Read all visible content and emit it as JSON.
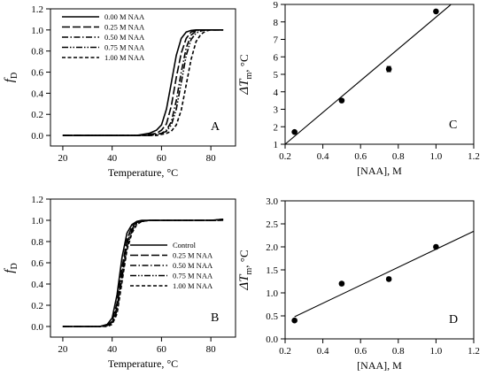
{
  "chart_data": [
    {
      "panel_label": "A",
      "type": "line",
      "xlabel": "Temperature, °C",
      "ylabel_main": "f",
      "ylabel_sub": "D",
      "xlim": [
        15,
        90
      ],
      "ylim": [
        -0.1,
        1.2
      ],
      "xticks": [
        20,
        40,
        60,
        80
      ],
      "yticks": [
        0.0,
        0.2,
        0.4,
        0.6,
        0.8,
        1.0,
        1.2
      ],
      "ytick_decimals": 1,
      "legend_placement": "top-left",
      "x": [
        20,
        30,
        40,
        50,
        55,
        58,
        60,
        62,
        64,
        66,
        68,
        70,
        72,
        74,
        76,
        78,
        80,
        85
      ],
      "series": [
        {
          "name": "0.00 M NAA",
          "dash": "solid",
          "values": [
            0.0,
            0.0,
            0.0,
            0.0,
            0.02,
            0.05,
            0.1,
            0.25,
            0.5,
            0.76,
            0.92,
            0.98,
            0.995,
            1.0,
            1.0,
            1.0,
            1.0,
            1.0
          ]
        },
        {
          "name": "0.25 M NAA",
          "dash": "long",
          "values": [
            0.0,
            0.0,
            0.0,
            0.0,
            0.01,
            0.02,
            0.05,
            0.11,
            0.28,
            0.55,
            0.78,
            0.92,
            0.98,
            0.995,
            1.0,
            1.0,
            1.0,
            1.0
          ]
        },
        {
          "name": "0.50 M NAA",
          "dash": "dashdot",
          "values": [
            0.0,
            0.0,
            0.0,
            0.0,
            0.0,
            0.01,
            0.02,
            0.05,
            0.13,
            0.33,
            0.6,
            0.83,
            0.95,
            0.99,
            1.0,
            1.0,
            1.0,
            1.0
          ]
        },
        {
          "name": "0.75 M NAA",
          "dash": "dashdotdot",
          "values": [
            0.0,
            0.0,
            0.0,
            0.0,
            0.0,
            0.01,
            0.02,
            0.04,
            0.1,
            0.25,
            0.5,
            0.76,
            0.91,
            0.97,
            0.99,
            1.0,
            1.0,
            1.0
          ]
        },
        {
          "name": "1.00 M NAA",
          "dash": "short",
          "values": [
            0.0,
            0.0,
            0.0,
            0.0,
            0.0,
            0.0,
            0.01,
            0.02,
            0.04,
            0.1,
            0.24,
            0.48,
            0.72,
            0.89,
            0.96,
            0.99,
            1.0,
            1.0
          ]
        }
      ]
    },
    {
      "panel_label": "C",
      "type": "scatter",
      "xlabel": "[NAA], M",
      "ylabel_main": "ΔT",
      "ylabel_sub": "m",
      "ylabel_unit": ", °C",
      "xlim": [
        0.2,
        1.2
      ],
      "ylim": [
        1,
        9
      ],
      "xticks": [
        0.2,
        0.4,
        0.6,
        0.8,
        1.0,
        1.2
      ],
      "yticks": [
        1,
        2,
        3,
        4,
        5,
        6,
        7,
        8,
        9
      ],
      "ytick_decimals": 0,
      "points": [
        {
          "x": 0.25,
          "y": 1.7,
          "err": 0.05
        },
        {
          "x": 0.5,
          "y": 3.5,
          "err": 0.08
        },
        {
          "x": 0.75,
          "y": 5.3,
          "err": 0.15
        },
        {
          "x": 1.0,
          "y": 8.6,
          "err": 0.08
        }
      ],
      "fit": {
        "x": [
          0.2,
          1.08
        ],
        "y": [
          1.0,
          9.0
        ]
      }
    },
    {
      "panel_label": "B",
      "type": "line",
      "xlabel": "Temperature, °C",
      "ylabel_main": "f",
      "ylabel_sub": "D",
      "xlim": [
        15,
        90
      ],
      "ylim": [
        -0.1,
        1.2
      ],
      "xticks": [
        20,
        40,
        60,
        80
      ],
      "yticks": [
        0.0,
        0.2,
        0.4,
        0.6,
        0.8,
        1.0,
        1.2
      ],
      "ytick_decimals": 1,
      "legend_placement": "center-right",
      "x": [
        20,
        30,
        35,
        38,
        40,
        42,
        44,
        46,
        48,
        50,
        52,
        55,
        60,
        70,
        80,
        85
      ],
      "series": [
        {
          "name": "Control",
          "dash": "solid",
          "values": [
            0.0,
            0.0,
            0.0,
            0.02,
            0.08,
            0.3,
            0.65,
            0.88,
            0.96,
            0.99,
            1.0,
            1.0,
            1.0,
            1.0,
            1.0,
            1.01
          ]
        },
        {
          "name": "0.25 M NAA",
          "dash": "long",
          "values": [
            0.0,
            0.0,
            0.0,
            0.01,
            0.05,
            0.22,
            0.55,
            0.82,
            0.94,
            0.98,
            0.99,
            1.0,
            1.0,
            1.0,
            1.0,
            1.01
          ]
        },
        {
          "name": "0.50 M NAA",
          "dash": "dashdot",
          "values": [
            0.0,
            0.0,
            0.0,
            0.01,
            0.04,
            0.18,
            0.5,
            0.78,
            0.92,
            0.97,
            0.99,
            1.0,
            1.0,
            1.0,
            1.0,
            1.0
          ]
        },
        {
          "name": "0.75 M NAA",
          "dash": "dashdotdot",
          "values": [
            0.0,
            0.0,
            0.0,
            0.01,
            0.03,
            0.15,
            0.46,
            0.75,
            0.9,
            0.97,
            0.99,
            1.0,
            1.0,
            1.0,
            1.0,
            1.0
          ]
        },
        {
          "name": "1.00 M NAA",
          "dash": "short",
          "values": [
            0.0,
            0.0,
            0.0,
            0.0,
            0.02,
            0.12,
            0.42,
            0.72,
            0.88,
            0.96,
            0.99,
            1.0,
            1.0,
            1.0,
            1.0,
            1.0
          ]
        }
      ]
    },
    {
      "panel_label": "D",
      "type": "scatter",
      "xlabel": "[NAA], M",
      "ylabel_main": "ΔT",
      "ylabel_sub": "m",
      "ylabel_unit": ", °C",
      "xlim": [
        0.2,
        1.2
      ],
      "ylim": [
        0.0,
        3.0
      ],
      "xticks": [
        0.2,
        0.4,
        0.6,
        0.8,
        1.0,
        1.2
      ],
      "yticks": [
        0.0,
        0.5,
        1.0,
        1.5,
        2.0,
        2.5,
        3.0
      ],
      "ytick_decimals": 1,
      "points": [
        {
          "x": 0.25,
          "y": 0.4,
          "err": 0.03
        },
        {
          "x": 0.5,
          "y": 1.2,
          "err": 0.04
        },
        {
          "x": 0.75,
          "y": 1.3,
          "err": 0.04
        },
        {
          "x": 1.0,
          "y": 2.0,
          "err": 0.03
        }
      ],
      "fit": {
        "x": [
          0.25,
          1.2
        ],
        "y": [
          0.48,
          2.34
        ]
      }
    }
  ]
}
